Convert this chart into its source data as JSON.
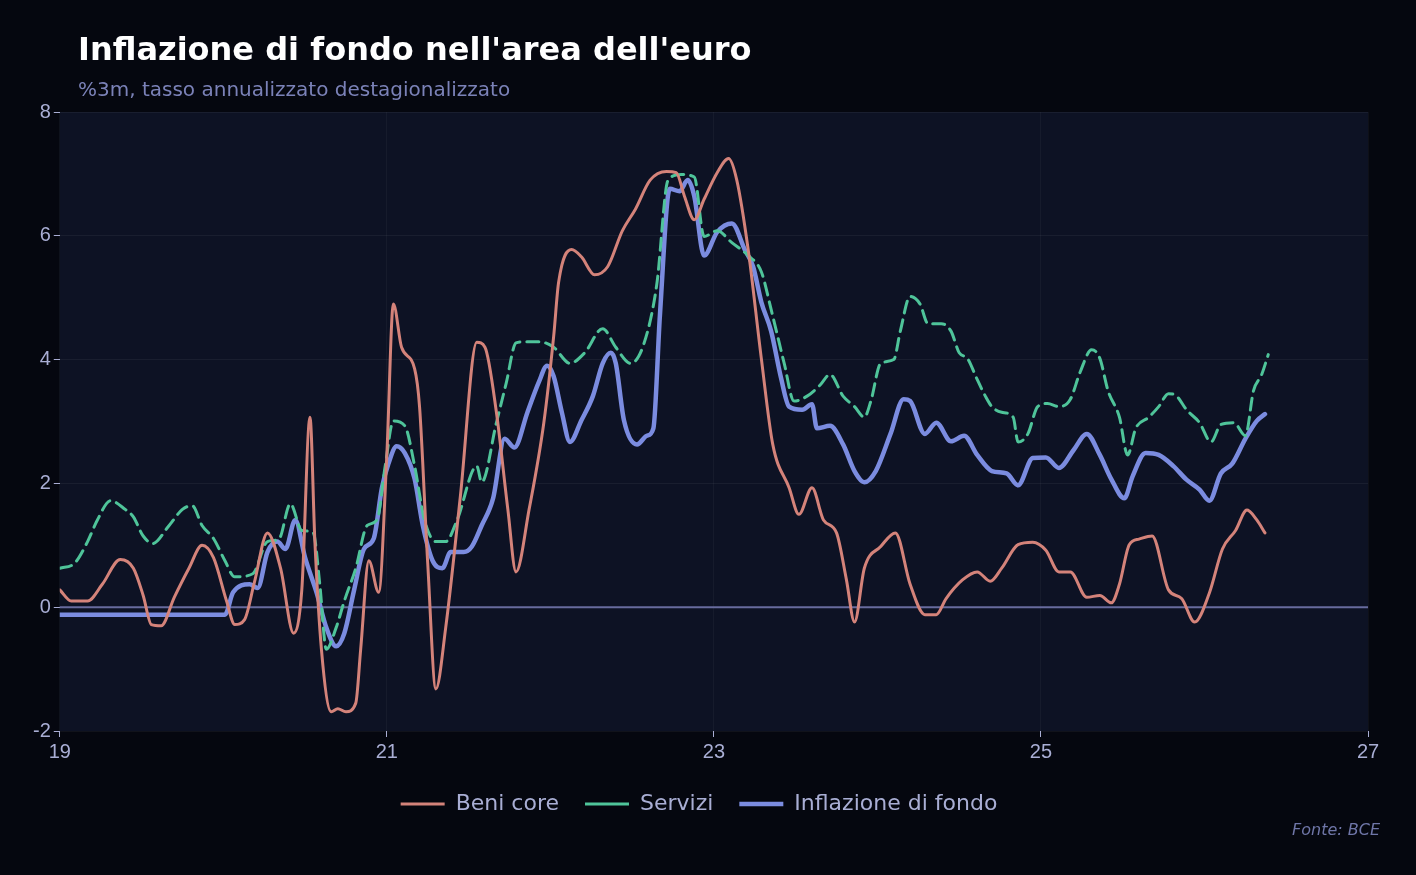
{
  "chart_data": {
    "type": "line",
    "title": "Inflazione di fondo nell'area dell'euro",
    "subtitle": "%3m, tasso annualizzato destagionalizzato",
    "annotations": [
      "Fonte: BCE"
    ],
    "xlim": [
      19,
      27
    ],
    "xticks": [
      19,
      21,
      23,
      25,
      27
    ],
    "ylim": [
      -2,
      8
    ],
    "yticks": [
      -2,
      0,
      2,
      4,
      6,
      8
    ],
    "grid": true,
    "legend": "bottom",
    "marker": "none",
    "ref_lines": [
      {
        "axis": "y",
        "value": 0,
        "color": "#676b9e"
      }
    ],
    "series": [
      {
        "name": "Beni core",
        "color": "#d4837a",
        "line_style": "solid",
        "x": [
          19.0,
          19.07,
          19.17,
          19.26,
          19.37,
          19.45,
          19.51,
          19.56,
          19.62,
          19.7,
          19.79,
          19.87,
          19.94,
          20.02,
          20.07,
          20.13,
          20.19,
          20.27,
          20.35,
          20.43,
          20.48,
          20.53,
          20.56,
          20.6,
          20.66,
          20.7,
          20.75,
          20.81,
          20.84,
          20.89,
          20.95,
          21.0,
          21.04,
          21.09,
          21.17,
          21.2,
          21.25,
          21.3,
          21.36,
          21.45,
          21.55,
          21.6,
          21.67,
          21.74,
          21.79,
          21.87,
          21.96,
          22.02,
          22.05,
          22.13,
          22.19,
          22.27,
          22.35,
          22.44,
          22.52,
          22.61,
          22.71,
          22.77,
          22.82,
          22.88,
          22.94,
          23.02,
          23.09,
          23.14,
          23.21,
          23.29,
          23.36,
          23.46,
          23.52,
          23.6,
          23.67,
          23.75,
          23.81,
          23.86,
          23.92,
          24.02,
          24.11,
          24.2,
          24.29,
          24.36,
          24.42,
          24.52,
          24.61,
          24.69,
          24.76,
          24.86,
          24.95,
          25.03,
          25.11,
          25.18,
          25.28,
          25.36,
          25.43,
          25.48,
          25.54,
          25.6,
          25.68,
          25.78,
          25.86,
          25.94,
          26.03,
          26.11,
          26.19,
          26.26,
          26.32,
          26.37
        ],
        "values": [
          0.28,
          0.1,
          0.1,
          0.37,
          0.77,
          0.63,
          0.19,
          -0.28,
          -0.3,
          0.16,
          0.63,
          1.0,
          0.8,
          0.1,
          -0.28,
          -0.2,
          0.4,
          1.2,
          0.63,
          -0.42,
          0.28,
          3.07,
          1.06,
          -0.68,
          -1.69,
          -1.64,
          -1.69,
          -1.55,
          -0.68,
          0.75,
          0.24,
          2.46,
          4.9,
          4.2,
          3.85,
          3.24,
          0.71,
          -1.32,
          -0.33,
          1.8,
          4.28,
          4.2,
          3.15,
          1.58,
          0.57,
          1.58,
          2.98,
          4.37,
          5.24,
          5.78,
          5.66,
          5.37,
          5.5,
          6.08,
          6.43,
          6.9,
          7.04,
          7.02,
          6.64,
          6.26,
          6.59,
          7.02,
          7.25,
          6.9,
          5.77,
          4.02,
          2.63,
          1.93,
          1.5,
          1.93,
          1.41,
          1.2,
          0.45,
          -0.24,
          0.63,
          0.98,
          1.2,
          0.37,
          -0.12,
          -0.12,
          0.14,
          0.44,
          0.57,
          0.42,
          0.63,
          1.01,
          1.05,
          0.92,
          0.57,
          0.57,
          0.16,
          0.19,
          0.07,
          0.37,
          1.01,
          1.1,
          1.15,
          0.28,
          0.14,
          -0.24,
          0.23,
          0.94,
          1.24,
          1.57,
          1.41,
          1.2
        ]
      },
      {
        "name": "Servizi",
        "color": "#4fc49a",
        "line_style": "dashed",
        "x": [
          19.0,
          19.09,
          19.17,
          19.23,
          19.31,
          19.4,
          19.45,
          19.51,
          19.57,
          19.66,
          19.75,
          19.81,
          19.87,
          19.94,
          20.01,
          20.07,
          20.18,
          20.27,
          20.34,
          20.41,
          20.48,
          20.55,
          20.59,
          20.63,
          20.69,
          20.74,
          20.81,
          20.88,
          20.94,
          20.99,
          21.04,
          21.11,
          21.17,
          21.23,
          21.3,
          21.36,
          21.43,
          21.55,
          21.58,
          21.67,
          21.73,
          21.79,
          21.85,
          21.93,
          22.02,
          22.12,
          22.21,
          22.32,
          22.4,
          22.49,
          22.57,
          22.65,
          22.72,
          22.8,
          22.88,
          22.94,
          23.02,
          23.11,
          23.21,
          23.29,
          23.35,
          23.43,
          23.49,
          23.57,
          23.65,
          23.71,
          23.79,
          23.86,
          23.92,
          23.96,
          24.02,
          24.1,
          24.14,
          24.2,
          24.26,
          24.31,
          24.39,
          24.45,
          24.5,
          24.55,
          24.61,
          24.66,
          24.7,
          24.76,
          24.83,
          24.86,
          24.92,
          24.98,
          25.04,
          25.11,
          25.18,
          25.24,
          25.31,
          25.36,
          25.41,
          25.48,
          25.53,
          25.58,
          25.66,
          25.72,
          25.78,
          25.83,
          25.89,
          25.97,
          26.04,
          26.1,
          26.18,
          26.25,
          26.3,
          26.35,
          26.39
        ],
        "values": [
          0.63,
          0.71,
          1.06,
          1.41,
          1.72,
          1.58,
          1.46,
          1.15,
          1.03,
          1.29,
          1.58,
          1.64,
          1.32,
          1.11,
          0.75,
          0.49,
          0.54,
          1.06,
          1.1,
          1.67,
          1.24,
          1.2,
          0.37,
          -0.68,
          -0.33,
          0.1,
          0.63,
          1.32,
          1.41,
          2.28,
          3.01,
          2.93,
          2.28,
          1.41,
          1.06,
          1.06,
          1.41,
          2.28,
          2.02,
          2.98,
          3.62,
          4.27,
          4.29,
          4.29,
          4.2,
          3.94,
          4.11,
          4.5,
          4.2,
          3.94,
          4.24,
          5.2,
          6.9,
          6.99,
          6.95,
          5.99,
          6.08,
          5.89,
          5.68,
          5.42,
          4.81,
          3.94,
          3.33,
          3.41,
          3.59,
          3.76,
          3.41,
          3.24,
          3.07,
          3.33,
          3.94,
          4.0,
          4.46,
          5.02,
          4.9,
          4.58,
          4.58,
          4.46,
          4.11,
          4.02,
          3.68,
          3.41,
          3.24,
          3.15,
          3.07,
          2.67,
          2.8,
          3.24,
          3.29,
          3.24,
          3.36,
          3.8,
          4.16,
          4.02,
          3.5,
          3.07,
          2.46,
          2.89,
          3.07,
          3.24,
          3.45,
          3.41,
          3.19,
          2.98,
          2.67,
          2.95,
          2.98,
          2.77,
          3.5,
          3.76,
          4.08
        ]
      },
      {
        "name": "Inflazione di fondo",
        "color": "#7b8ce0",
        "line_style": "solid",
        "x": [
          19.0,
          20.01,
          20.06,
          20.16,
          20.21,
          20.27,
          20.33,
          20.38,
          20.44,
          20.5,
          20.57,
          20.63,
          20.69,
          20.74,
          20.8,
          20.86,
          20.92,
          20.97,
          21.01,
          21.06,
          21.11,
          21.17,
          21.22,
          21.28,
          21.34,
          21.39,
          21.47,
          21.52,
          21.58,
          21.65,
          21.72,
          21.78,
          21.86,
          21.93,
          21.98,
          22.02,
          22.07,
          22.12,
          22.19,
          22.26,
          22.32,
          22.37,
          22.4,
          22.45,
          22.53,
          22.59,
          22.63,
          22.67,
          22.73,
          22.79,
          22.84,
          22.88,
          22.94,
          23.02,
          23.11,
          23.19,
          23.24,
          23.29,
          23.35,
          23.41,
          23.46,
          23.54,
          23.6,
          23.63,
          23.71,
          23.79,
          23.86,
          23.92,
          23.99,
          24.08,
          24.16,
          24.2,
          24.29,
          24.36,
          24.45,
          24.53,
          24.61,
          24.7,
          24.79,
          24.86,
          24.95,
          25.03,
          25.11,
          25.2,
          25.28,
          25.36,
          25.43,
          25.51,
          25.56,
          25.64,
          25.72,
          25.81,
          25.89,
          25.97,
          26.03,
          26.1,
          26.17,
          26.25,
          26.32,
          26.37
        ],
        "values": [
          -0.12,
          -0.12,
          0.24,
          0.37,
          0.31,
          0.89,
          1.06,
          0.94,
          1.41,
          0.8,
          0.24,
          -0.33,
          -0.63,
          -0.42,
          0.28,
          0.94,
          1.11,
          1.93,
          2.32,
          2.6,
          2.49,
          2.07,
          1.32,
          0.75,
          0.63,
          0.89,
          0.89,
          0.98,
          1.32,
          1.76,
          2.72,
          2.58,
          3.15,
          3.64,
          3.9,
          3.73,
          3.15,
          2.67,
          3.02,
          3.41,
          3.94,
          4.11,
          3.94,
          3.02,
          2.63,
          2.77,
          2.89,
          4.72,
          6.76,
          6.72,
          6.9,
          6.64,
          5.68,
          6.06,
          6.2,
          5.77,
          5.5,
          4.93,
          4.46,
          3.71,
          3.24,
          3.19,
          3.28,
          2.89,
          2.93,
          2.63,
          2.2,
          2.02,
          2.2,
          2.8,
          3.36,
          3.33,
          2.8,
          2.98,
          2.68,
          2.77,
          2.46,
          2.2,
          2.16,
          1.97,
          2.41,
          2.42,
          2.25,
          2.54,
          2.8,
          2.46,
          2.07,
          1.76,
          2.11,
          2.49,
          2.46,
          2.28,
          2.06,
          1.9,
          1.72,
          2.16,
          2.32,
          2.72,
          3.01,
          3.12
        ]
      }
    ]
  }
}
